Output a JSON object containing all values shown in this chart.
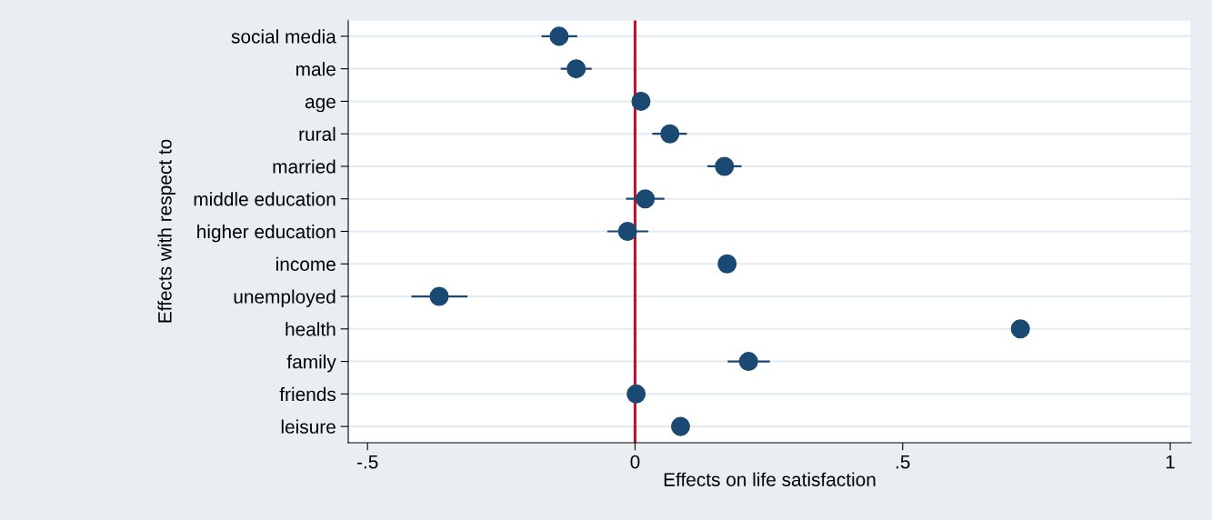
{
  "chart_data": {
    "type": "scatter",
    "orientation": "horizontal",
    "xlabel": "Effects on life satisfaction",
    "ylabel": "Effects with respect to",
    "categories": [
      "social media",
      "male",
      "age",
      "rural",
      "married",
      "middle education",
      "higher education",
      "income",
      "unemployed",
      "health",
      "family",
      "friends",
      "leisure"
    ],
    "values": [
      -0.142,
      -0.11,
      0.011,
      0.065,
      0.167,
      0.019,
      -0.014,
      0.172,
      -0.366,
      0.72,
      0.212,
      0.002,
      0.085
    ],
    "errors": [
      [
        -0.173,
        -0.11
      ],
      [
        -0.137,
        -0.083
      ],
      null,
      [
        0.034,
        0.095
      ],
      [
        0.137,
        0.197
      ],
      [
        -0.015,
        0.053
      ],
      [
        -0.05,
        0.023
      ],
      null,
      [
        -0.416,
        -0.315
      ],
      null,
      [
        0.175,
        0.25
      ],
      null,
      null
    ],
    "color": "#1a4a73",
    "marker": "circle",
    "xlim": [
      -0.536,
      1.039
    ],
    "xticks": [
      {
        "value": -0.5,
        "label": "-.5"
      },
      0,
      {
        "value": 0.5,
        "label": ".5"
      },
      1
    ],
    "grid": "y",
    "ref_lines": [
      {
        "axis": "x",
        "value": 0,
        "color": "#c8102e"
      }
    ]
  }
}
